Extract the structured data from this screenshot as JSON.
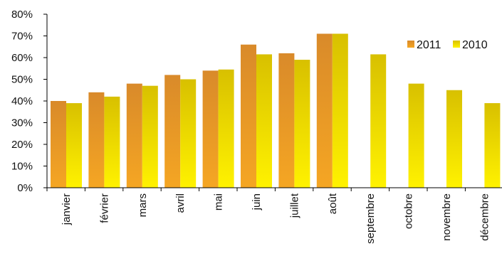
{
  "colors": {
    "series_2011_top": "#d98a2a",
    "series_2011_bottom": "#f5a623",
    "series_2010_top": "#d8c000",
    "series_2010_bottom": "#fff200",
    "axis": "#000000"
  },
  "chart_data": {
    "type": "bar",
    "categories": [
      "janvier",
      "février",
      "mars",
      "avril",
      "mai",
      "juin",
      "juillet",
      "août",
      "septembre",
      "octobre",
      "novembre",
      "décembre"
    ],
    "series": [
      {
        "name": "2011",
        "values": [
          40,
          44,
          48,
          52,
          54,
          66,
          62,
          71,
          null,
          null,
          null,
          null
        ]
      },
      {
        "name": "2010",
        "values": [
          39,
          42,
          47,
          50,
          54.5,
          61.5,
          59,
          71,
          61.5,
          48,
          45,
          39
        ]
      }
    ],
    "yticks": [
      "0%",
      "10%",
      "20%",
      "30%",
      "40%",
      "50%",
      "60%",
      "70%",
      "80%"
    ],
    "ylim": [
      0,
      80
    ],
    "grid": false,
    "legend_position": "top-right"
  }
}
